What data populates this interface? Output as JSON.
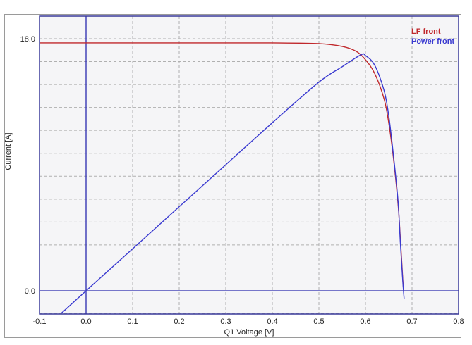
{
  "chart_data": {
    "type": "line",
    "title": "",
    "xlabel": "Q1 Voltage [V]",
    "ylabel": "Current [A]",
    "xlim": [
      -0.1,
      0.8
    ],
    "ylim": [
      -1.65,
      19.8
    ],
    "x_ticks": [
      "-0.1",
      "0.0",
      "0.1",
      "0.2",
      "0.3",
      "0.4",
      "0.5",
      "0.6",
      "0.7",
      "0.8"
    ],
    "y_ticks": [
      "0.0",
      "18.0"
    ],
    "grid": true,
    "legend_position": "top-right",
    "series": [
      {
        "name": "LF front",
        "color": "#c0282c",
        "x": [
          -0.1,
          0.0,
          0.1,
          0.2,
          0.3,
          0.4,
          0.5,
          0.55,
          0.58,
          0.6,
          0.62,
          0.64,
          0.65,
          0.66,
          0.67,
          0.675,
          0.68,
          0.682
        ],
        "y": [
          17.7,
          17.7,
          17.7,
          17.7,
          17.7,
          17.7,
          17.65,
          17.45,
          17.1,
          16.5,
          15.5,
          13.7,
          12.0,
          9.5,
          6.2,
          3.7,
          0.9,
          0.0
        ]
      },
      {
        "name": "Power front",
        "color": "#3a3ad0",
        "x": [
          -0.053,
          0.0,
          0.1,
          0.2,
          0.3,
          0.4,
          0.5,
          0.55,
          0.59,
          0.6,
          0.62,
          0.64,
          0.65,
          0.66,
          0.67,
          0.675,
          0.68,
          0.683
        ],
        "y": [
          -1.6,
          0.0,
          3.0,
          6.0,
          9.0,
          12.0,
          14.9,
          16.0,
          16.85,
          16.8,
          16.1,
          14.3,
          12.5,
          9.7,
          6.4,
          3.4,
          0.75,
          -0.55
        ]
      }
    ]
  },
  "colors": {
    "plot_background": "#f5f5f7",
    "axis_frame": "#3a3a9a",
    "zero_lines": "#2a2ab0",
    "grid": "#b0b0b0"
  }
}
